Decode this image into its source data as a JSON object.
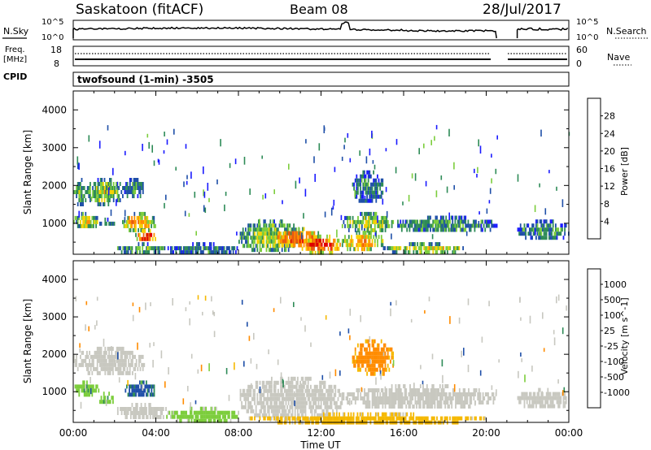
{
  "header": {
    "title": "Saskatoon (fitACF)",
    "beam": "Beam 08",
    "date": "28/Jul/2017"
  },
  "noise_panel": {
    "left_label": "N.Sky",
    "right_label": "N.Search",
    "tick_top": "10^5",
    "tick_bottom": "10^0"
  },
  "freq_panel": {
    "left_label_1": "Freq.",
    "left_label_2": "[MHz]",
    "tick_top": "18",
    "tick_bottom": "8",
    "right_label": "Nave",
    "right_tick_top": "60",
    "right_tick_bottom": "0",
    "cpid_label": "CPID"
  },
  "mode_label": "twofsound (1-min) -3505",
  "x_axis": {
    "label": "Time UT",
    "ticks": [
      "00:00",
      "04:00",
      "08:00",
      "12:00",
      "16:00",
      "20:00",
      "00:00"
    ]
  },
  "colors": {
    "power": [
      "#1a1aff",
      "#1f4fa8",
      "#2e8b57",
      "#7ccd3c",
      "#f5d000",
      "#ff8c00",
      "#e85a10",
      "#e00000"
    ],
    "velocity": [
      "#1a1aff",
      "#1f4fa8",
      "#2e8b57",
      "#7ccd3c",
      "#c8c8c0",
      "#f5b800",
      "#ff8c00",
      "#e85a10",
      "#e00000"
    ],
    "ground_scatter": "#c8c8c0"
  },
  "chart_data": [
    {
      "type": "heatmap",
      "panel": "power",
      "ylabel": "Slant Range [km]",
      "xlabel": "Time UT",
      "xlim": [
        0,
        24
      ],
      "ylim": [
        180,
        4500
      ],
      "yticks": [
        1000,
        2000,
        3000,
        4000
      ],
      "colorbar": {
        "label": "Power [dB]",
        "ticks": [
          "4",
          "8",
          "12",
          "16",
          "20",
          "24",
          "28"
        ],
        "range": [
          0,
          32
        ]
      },
      "regions": [
        {
          "t0": 0.0,
          "t1": 0.6,
          "r0": 1500,
          "r1": 2200,
          "value": 12
        },
        {
          "t0": 0.6,
          "t1": 2.4,
          "r0": 1550,
          "r1": 2200,
          "value": 14
        },
        {
          "t0": 2.4,
          "t1": 3.4,
          "r0": 1700,
          "r1": 2200,
          "value": 10
        },
        {
          "t0": 0.0,
          "t1": 1.2,
          "r0": 900,
          "r1": 1300,
          "value": 16
        },
        {
          "t0": 1.2,
          "t1": 2.0,
          "r0": 950,
          "r1": 1150,
          "value": 8
        },
        {
          "t0": 2.3,
          "t1": 4.0,
          "r0": 850,
          "r1": 1300,
          "value": 20
        },
        {
          "t0": 3.0,
          "t1": 4.0,
          "r0": 550,
          "r1": 850,
          "value": 28
        },
        {
          "t0": 2.0,
          "t1": 4.5,
          "r0": 250,
          "r1": 500,
          "value": 12
        },
        {
          "t0": 4.5,
          "t1": 8.0,
          "r0": 220,
          "r1": 500,
          "value": 8
        },
        {
          "t0": 8.0,
          "t1": 11.0,
          "r0": 250,
          "r1": 1100,
          "value": 14
        },
        {
          "t0": 9.5,
          "t1": 12.0,
          "r0": 400,
          "r1": 900,
          "value": 24
        },
        {
          "t0": 11.0,
          "t1": 13.0,
          "r0": 250,
          "r1": 700,
          "value": 26
        },
        {
          "t0": 13.0,
          "t1": 15.5,
          "r0": 800,
          "r1": 1300,
          "value": 14
        },
        {
          "t0": 13.0,
          "t1": 15.0,
          "r0": 300,
          "r1": 800,
          "value": 20
        },
        {
          "t0": 15.5,
          "t1": 20.5,
          "r0": 800,
          "r1": 1200,
          "value": 10
        },
        {
          "t0": 15.0,
          "t1": 19.0,
          "r0": 250,
          "r1": 500,
          "value": 16
        },
        {
          "t0": 13.5,
          "t1": 15.0,
          "r0": 1600,
          "r1": 2400,
          "value": 8
        },
        {
          "t0": 21.5,
          "t1": 24.0,
          "r0": 600,
          "r1": 1100,
          "value": 10
        }
      ]
    },
    {
      "type": "heatmap",
      "panel": "velocity",
      "ylabel": "Slant Range [km]",
      "xlabel": "Time UT",
      "xlim": [
        0,
        24
      ],
      "ylim": [
        180,
        4500
      ],
      "yticks": [
        1000,
        2000,
        3000,
        4000
      ],
      "colorbar": {
        "label": "Velocity [m s^-1]",
        "ticks": [
          "1000",
          "500",
          "100",
          "25",
          "-25",
          "-100",
          "-500",
          "-1000"
        ]
      },
      "regions": [
        {
          "t0": 0.0,
          "t1": 3.5,
          "r0": 1500,
          "r1": 2200,
          "value": "ground"
        },
        {
          "t0": 0.0,
          "t1": 1.2,
          "r0": 900,
          "r1": 1300,
          "value": 80
        },
        {
          "t0": 1.2,
          "t1": 2.0,
          "r0": 700,
          "r1": 1000,
          "value": 80
        },
        {
          "t0": 2.5,
          "t1": 4.0,
          "r0": 900,
          "r1": 1300,
          "value": 300
        },
        {
          "t0": 2.0,
          "t1": 4.5,
          "r0": 300,
          "r1": 700,
          "value": "ground"
        },
        {
          "t0": 4.5,
          "t1": 8.0,
          "r0": 220,
          "r1": 600,
          "value": 60
        },
        {
          "t0": 8.0,
          "t1": 13.0,
          "r0": 300,
          "r1": 1400,
          "value": "ground"
        },
        {
          "t0": 8.5,
          "t1": 20.0,
          "r0": 200,
          "r1": 450,
          "value": -60
        },
        {
          "t0": 13.0,
          "t1": 20.5,
          "r0": 600,
          "r1": 1200,
          "value": "ground"
        },
        {
          "t0": 13.5,
          "t1": 15.5,
          "r0": 1500,
          "r1": 2400,
          "value": -200
        },
        {
          "t0": 21.5,
          "t1": 24.0,
          "r0": 600,
          "r1": 1100,
          "value": "ground"
        }
      ]
    }
  ]
}
